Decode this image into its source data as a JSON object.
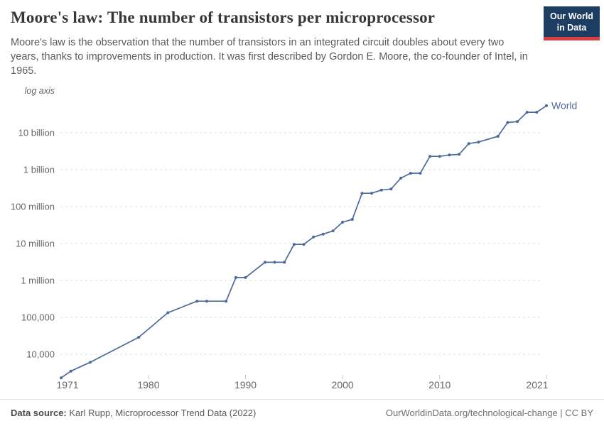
{
  "header": {
    "title": "Moore's law: The number of transistors per microprocessor",
    "subtitle": "Moore's law is the observation that the number of transistors in an integrated circuit doubles about every two years, thanks to improvements in production. It was first described by Gordon E. Moore, the co-founder of Intel, in 1965.",
    "logo": {
      "line1": "Our World",
      "line2": "in Data"
    }
  },
  "chart_data": {
    "type": "line",
    "title": "Moore's law: The number of transistors per microprocessor",
    "y_axis": {
      "scale": "log",
      "note": "log axis",
      "ticks": [
        {
          "value": 10000,
          "label": "10,000"
        },
        {
          "value": 100000,
          "label": "100,000"
        },
        {
          "value": 1000000,
          "label": "1 million"
        },
        {
          "value": 10000000,
          "label": "10 million"
        },
        {
          "value": 100000000,
          "label": "100 million"
        },
        {
          "value": 1000000000,
          "label": "1 billion"
        },
        {
          "value": 10000000000,
          "label": "10 billion"
        }
      ]
    },
    "x_axis": {
      "range": [
        1971,
        2021
      ],
      "ticks": [
        1971,
        1980,
        1990,
        2000,
        2010,
        2021
      ]
    },
    "grid": true,
    "legend": "end-of-line label",
    "series": [
      {
        "name": "World",
        "points": [
          [
            1971,
            2300
          ],
          [
            1972,
            3500
          ],
          [
            1974,
            6100
          ],
          [
            1979,
            29000
          ],
          [
            1982,
            134000
          ],
          [
            1985,
            275000
          ],
          [
            1986,
            275000
          ],
          [
            1988,
            275000
          ],
          [
            1989,
            1200000
          ],
          [
            1990,
            1200000
          ],
          [
            1992,
            3100000
          ],
          [
            1993,
            3100000
          ],
          [
            1994,
            3100000
          ],
          [
            1995,
            9500000
          ],
          [
            1996,
            9500000
          ],
          [
            1997,
            15000000
          ],
          [
            1998,
            18000000
          ],
          [
            1999,
            22000000
          ],
          [
            2000,
            38000000
          ],
          [
            2001,
            45000000
          ],
          [
            2002,
            230000000
          ],
          [
            2003,
            230000000
          ],
          [
            2004,
            280000000
          ],
          [
            2005,
            300000000
          ],
          [
            2006,
            590000000
          ],
          [
            2007,
            800000000
          ],
          [
            2008,
            800000000
          ],
          [
            2009,
            2300000000
          ],
          [
            2010,
            2300000000
          ],
          [
            2011,
            2500000000
          ],
          [
            2012,
            2600000000
          ],
          [
            2013,
            5100000000
          ],
          [
            2014,
            5600000000
          ],
          [
            2016,
            8000000000
          ],
          [
            2017,
            19000000000
          ],
          [
            2018,
            20000000000
          ],
          [
            2019,
            36000000000
          ],
          [
            2020,
            36000000000
          ],
          [
            2021,
            54000000000
          ]
        ]
      }
    ]
  },
  "footer": {
    "source_label": "Data source:",
    "source_text": " Karl Rupp, Microprocessor Trend Data (2022)",
    "credit": "OurWorldinData.org/technological-change | CC BY"
  },
  "colors": {
    "line": "#4c6a9c",
    "grid": "#dcdcdc",
    "logo_bg": "#1d3d63",
    "logo_stripe": "#dc3e43"
  }
}
